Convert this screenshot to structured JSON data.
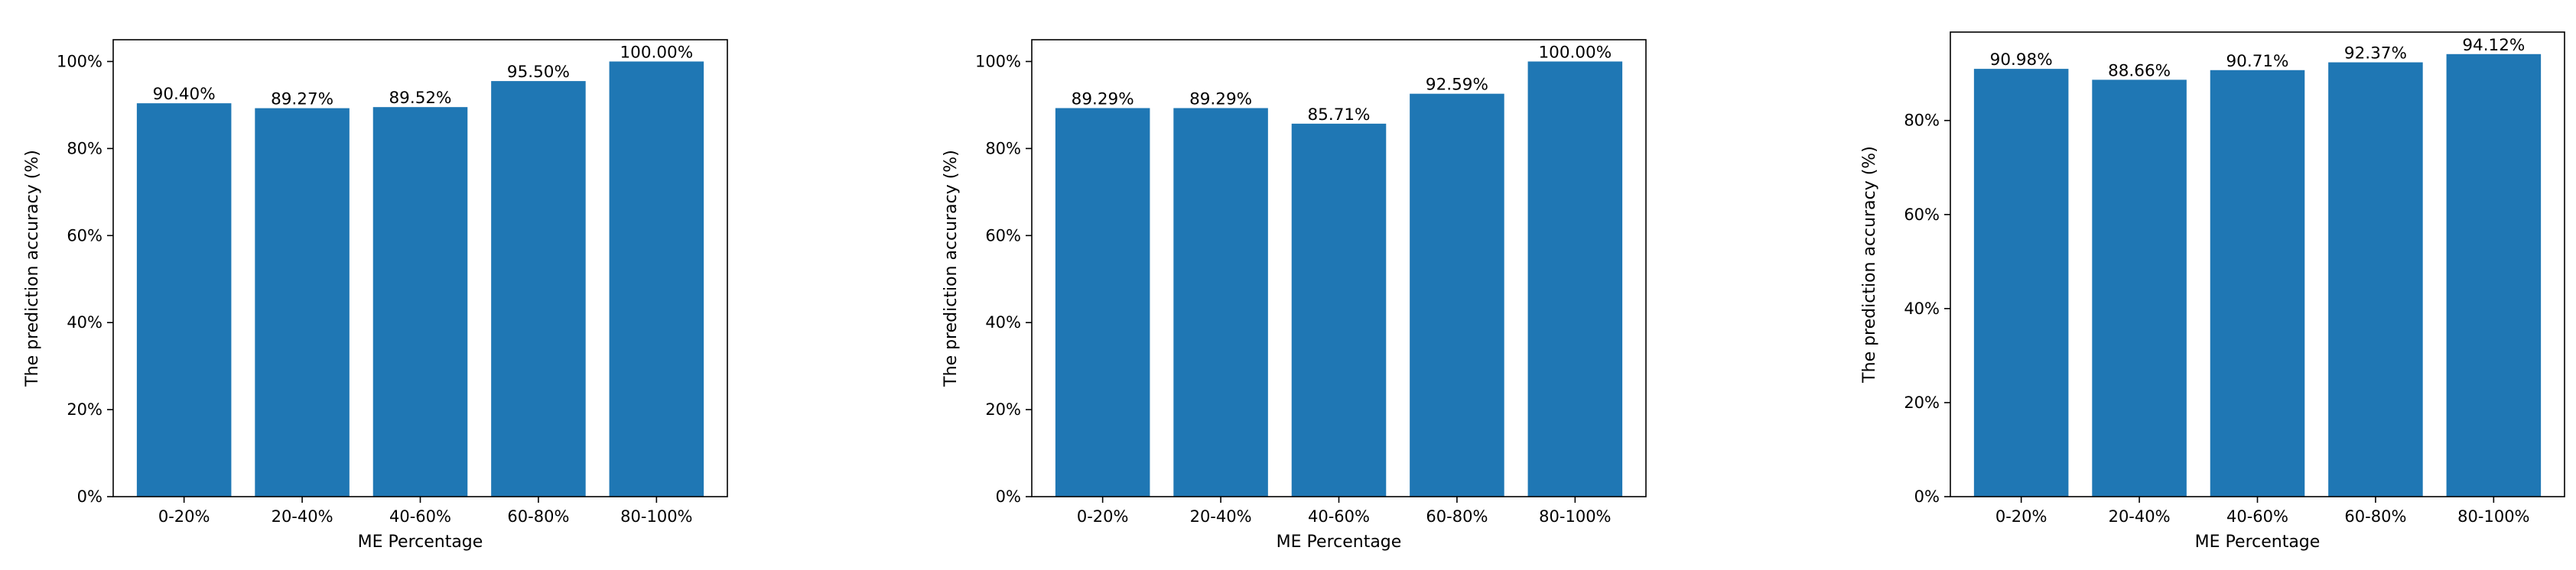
{
  "chart_data": [
    {
      "type": "bar",
      "categories": [
        "0-20%",
        "20-40%",
        "40-60%",
        "60-80%",
        "80-100%"
      ],
      "values": [
        90.4,
        89.27,
        89.52,
        95.5,
        100.0
      ],
      "data_labels": [
        "90.40%",
        "89.27%",
        "89.52%",
        "95.50%",
        "100.00%"
      ],
      "xlabel": "ME Percentage",
      "ylabel": "The prediction accuracy (%)",
      "ylim": [
        0,
        105
      ],
      "yticks": [
        0,
        20,
        40,
        60,
        80,
        100
      ],
      "ytick_labels": [
        "0%",
        "20%",
        "40%",
        "60%",
        "80%",
        "100%"
      ],
      "bar_color": "#1f77b4",
      "grid": false
    },
    {
      "type": "bar",
      "categories": [
        "0-20%",
        "20-40%",
        "40-60%",
        "60-80%",
        "80-100%"
      ],
      "values": [
        89.29,
        89.29,
        85.71,
        92.59,
        100.0
      ],
      "data_labels": [
        "89.29%",
        "89.29%",
        "85.71%",
        "92.59%",
        "100.00%"
      ],
      "xlabel": "ME Percentage",
      "ylabel": "The prediction accuracy (%)",
      "ylim": [
        0,
        105
      ],
      "yticks": [
        0,
        20,
        40,
        60,
        80,
        100
      ],
      "ytick_labels": [
        "0%",
        "20%",
        "40%",
        "60%",
        "80%",
        "100%"
      ],
      "bar_color": "#1f77b4",
      "grid": false
    },
    {
      "type": "bar",
      "categories": [
        "0-20%",
        "20-40%",
        "40-60%",
        "60-80%",
        "80-100%"
      ],
      "values": [
        90.98,
        88.66,
        90.71,
        92.37,
        94.12
      ],
      "data_labels": [
        "90.98%",
        "88.66%",
        "90.71%",
        "92.37%",
        "94.12%"
      ],
      "xlabel": "ME Percentage",
      "ylabel": "The prediction accuracy (%)",
      "ylim": [
        0,
        98.8
      ],
      "yticks": [
        0,
        20,
        40,
        60,
        80
      ],
      "ytick_labels": [
        "0%",
        "20%",
        "40%",
        "60%",
        "80%"
      ],
      "bar_color": "#1f77b4",
      "grid": false
    }
  ]
}
